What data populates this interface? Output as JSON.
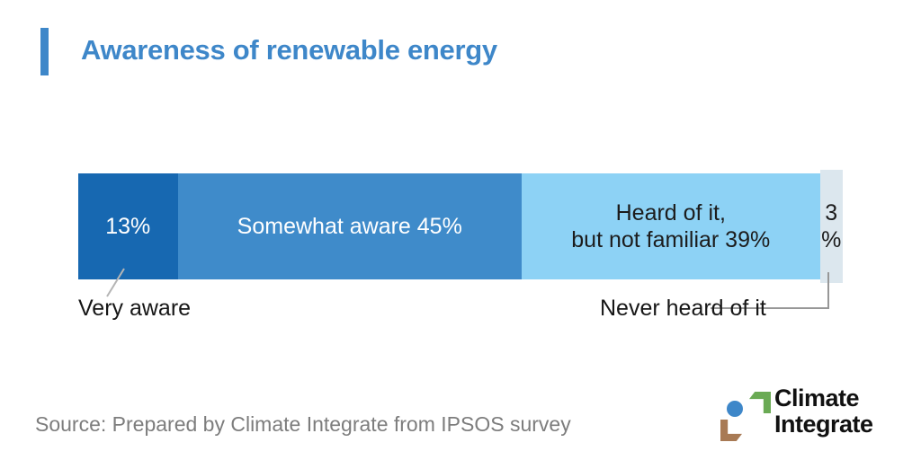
{
  "header": {
    "title": "Awareness of renewable energy"
  },
  "chart_data": {
    "type": "bar",
    "orientation": "horizontal-stacked",
    "title": "Awareness of renewable energy",
    "categories": [
      "Very aware",
      "Somewhat aware",
      "Heard of it, but not familiar",
      "Never heard of it"
    ],
    "values": [
      13,
      45,
      39,
      3
    ],
    "unit": "percent",
    "xlim": [
      0,
      100
    ],
    "grid": false,
    "legend": "none",
    "segments": [
      {
        "category": "Very aware",
        "value": 13,
        "bar_label": "13%",
        "color": "#1768b1",
        "label_color": "#ffffff",
        "external_label": "Very aware"
      },
      {
        "category": "Somewhat aware",
        "value": 45,
        "bar_label": "Somewhat aware 45%",
        "color": "#3f8bca",
        "label_color": "#ffffff",
        "external_label": ""
      },
      {
        "category": "Heard of it, but not familiar",
        "value": 39,
        "bar_label_line1": "Heard of it,",
        "bar_label_line2": "but not familiar 39%",
        "color": "#8dd2f5",
        "label_color": "#1c1c1c",
        "external_label": ""
      },
      {
        "category": "Never heard of it",
        "value": 3,
        "bar_label_line1": "3",
        "bar_label_line2": "%",
        "color": "#dce7ee",
        "label_color": "#1c1c1c",
        "external_label": "Never heard of it"
      }
    ]
  },
  "footer": {
    "source": "Source: Prepared by Climate Integrate from IPSOS survey"
  },
  "logo": {
    "line1": "Climate",
    "line2": "Integrate",
    "colors": {
      "ring_blue": "#3e87c9",
      "corner_green": "#6aaa54",
      "corner_brown": "#a87a55"
    }
  },
  "colors": {
    "title_blue": "#3e87c9",
    "accent_bar": "#3e87c9",
    "source_gray": "#7d7d7d",
    "leader_gray": "#979797",
    "background": "#ffffff"
  }
}
